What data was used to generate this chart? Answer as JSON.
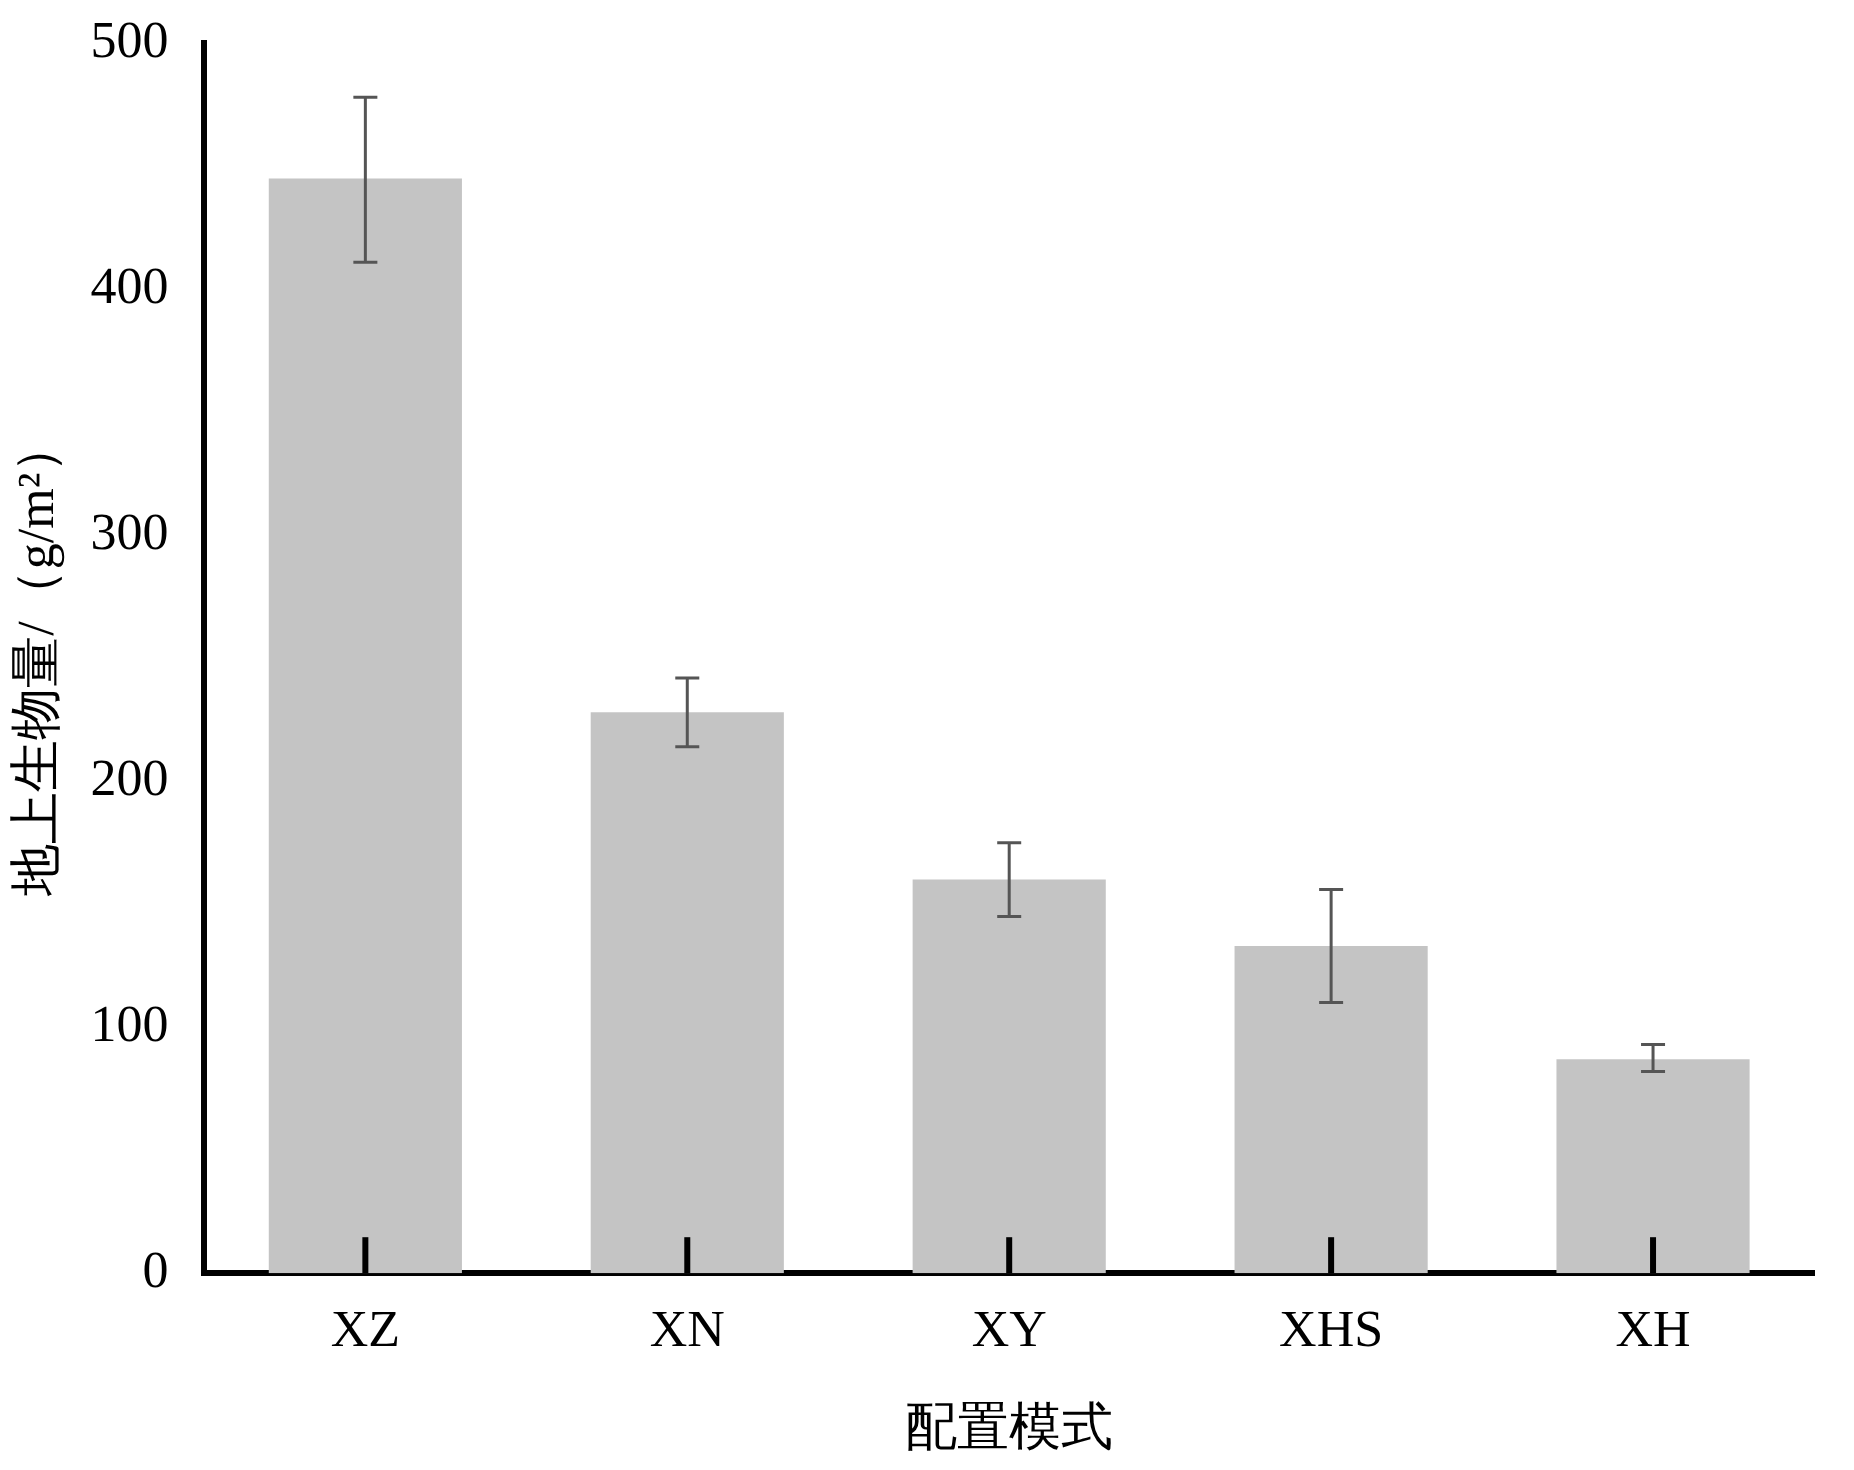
{
  "chart_data": {
    "type": "bar",
    "xlabel": "配置模式",
    "ylabel": "地上生物量/（g/m²）",
    "categories": [
      "XZ",
      "XN",
      "XY",
      "XHS",
      "XH"
    ],
    "values": [
      445,
      228,
      160,
      133,
      87
    ],
    "errors": [
      [
        411,
        478
      ],
      [
        214,
        242
      ],
      [
        145,
        175
      ],
      [
        110,
        156
      ],
      [
        82,
        93
      ]
    ],
    "color": "#c4c4c4",
    "ylim": [
      0,
      500
    ],
    "yticks": [
      0,
      100,
      200,
      300,
      400,
      500
    ],
    "grid": false,
    "legend": false
  }
}
